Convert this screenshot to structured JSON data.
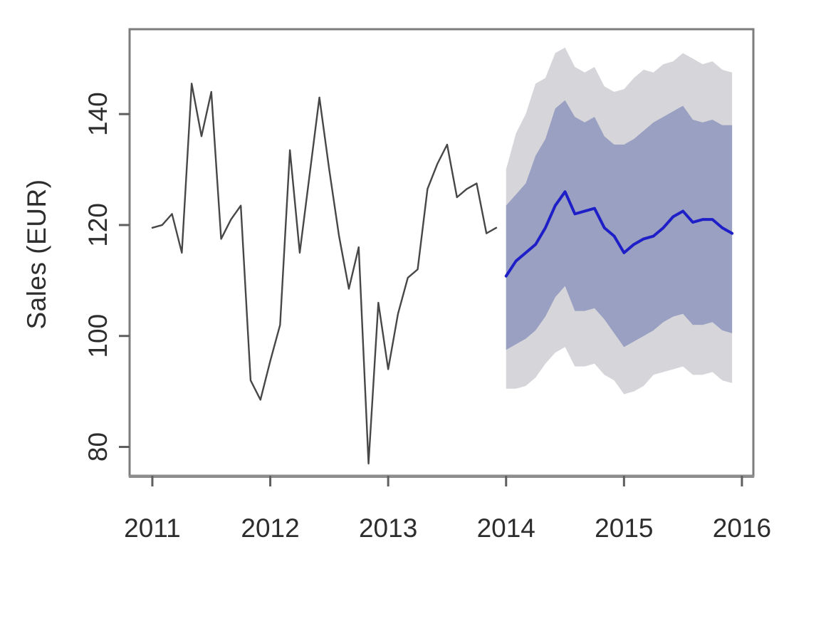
{
  "figure": {
    "background": "#ffffff",
    "kind": "R base time-series forecast plot with prediction intervals"
  },
  "chart_data": {
    "type": "line",
    "title": "",
    "xlabel": "",
    "ylabel": "Sales (EUR)",
    "x_ticks": [
      2011,
      2012,
      2013,
      2014,
      2015,
      2016
    ],
    "y_ticks": [
      80,
      100,
      120,
      140
    ],
    "xlim": [
      2010.807,
      2016.097
    ],
    "ylim": [
      74.8,
      155.3
    ],
    "grid": "off",
    "legend": "none",
    "historical": {
      "name": "observed-sales",
      "start_year": 2011,
      "frequency": 12,
      "values": [
        119.5,
        120,
        122,
        115,
        145.5,
        136,
        144,
        117.5,
        121,
        123.5,
        92,
        88.5,
        95.5,
        102,
        133.5,
        115,
        129,
        143,
        130,
        118,
        108.5,
        116,
        77,
        106,
        94,
        104,
        110.5,
        112,
        126.5,
        131,
        134.5,
        125,
        126.5,
        127.5,
        118.5,
        119.5
      ]
    },
    "forecast": {
      "name": "point-forecast",
      "start_year": 2014,
      "frequency": 12,
      "mean": [
        110.8,
        113.5,
        115,
        116.5,
        119.5,
        123.5,
        126,
        122,
        122.5,
        123,
        119.5,
        118,
        115,
        116.5,
        117.5,
        118,
        119.5,
        121.5,
        122.5,
        120.5,
        121,
        121,
        119.5,
        118.5
      ],
      "hi80": [
        123.5,
        125.5,
        127.5,
        132.5,
        135.5,
        141,
        142.5,
        139.5,
        138.5,
        139.5,
        136,
        134.5,
        134.5,
        135.5,
        137,
        138.5,
        139.5,
        140.5,
        141.5,
        139,
        138.5,
        139,
        138,
        138
      ],
      "lo80": [
        97.5,
        98.5,
        99.5,
        101,
        103.5,
        107,
        109,
        104.5,
        104.5,
        105,
        103,
        100.5,
        98,
        99,
        100,
        101,
        102.5,
        103.5,
        104,
        102,
        102,
        102.5,
        101,
        100.5
      ],
      "hi95": [
        130,
        136.5,
        140,
        145.5,
        146.5,
        151,
        152,
        148.5,
        147.5,
        148.5,
        145,
        144,
        144.5,
        146.5,
        148,
        147.5,
        149,
        149.5,
        151,
        150,
        149,
        149.5,
        148,
        147.5
      ],
      "lo95": [
        90.5,
        90.5,
        91,
        92.5,
        95,
        97,
        98,
        94.5,
        94.5,
        95,
        93,
        92,
        89.5,
        90,
        91,
        93,
        93.5,
        94,
        94.5,
        93,
        93,
        93.5,
        92,
        91.5
      ]
    },
    "colors": {
      "history_line": "#474747",
      "forecast_line": "#1f1fc8",
      "band_80": "#9aa0c2",
      "band_95": "#d6d6da",
      "frame": "#7d7d7d",
      "tick": "#5f5f5f",
      "tick_label": "#2d2d2d"
    }
  }
}
